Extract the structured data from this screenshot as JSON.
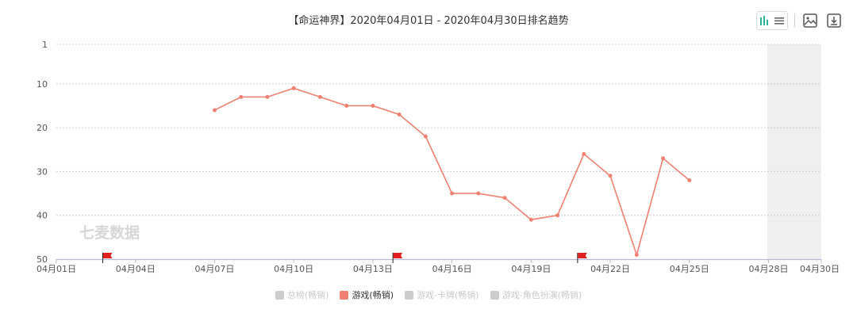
{
  "title": "【命运神界】2020年04月01日 - 2020年04月30日排名趋势",
  "watermark": "七麦数据",
  "legend": [
    {
      "label": "总榜(畅销)",
      "active": false,
      "color": "#cccccc"
    },
    {
      "label": "游戏(畅销)",
      "active": true,
      "color": "#f08070"
    },
    {
      "label": "游戏-卡牌(畅销)",
      "active": false,
      "color": "#cccccc"
    },
    {
      "label": "游戏-角色扮演(畅销)",
      "active": false,
      "color": "#cccccc"
    }
  ],
  "toolbar": {
    "view_toggle_icon": "bar-list-toggle-icon",
    "save_image_icon": "image-icon",
    "download_icon": "download-icon"
  },
  "colors": {
    "series": "#f08070",
    "axis": "#b8b8d8",
    "grid": "#cccccc",
    "shaded": "#efefef",
    "flag": "#e02020",
    "accent_toggle": "#2bb39a"
  },
  "chart_data": {
    "type": "line",
    "title": "【命运神界】2020年04月01日 - 2020年04月30日排名趋势",
    "xlabel": "",
    "ylabel": "",
    "x_tick_labels": [
      "04月01日",
      "04月04日",
      "04月07日",
      "04月10日",
      "04月13日",
      "04月16日",
      "04月19日",
      "04月22日",
      "04月25日",
      "04月28日",
      "04月30日"
    ],
    "x_tick_days": [
      1,
      4,
      7,
      10,
      13,
      16,
      19,
      22,
      25,
      28,
      30
    ],
    "y_ticks": [
      1,
      10,
      20,
      30,
      40,
      50
    ],
    "y_inverted": true,
    "ylim": [
      1,
      50
    ],
    "xlim": [
      "04月01日",
      "04月30日"
    ],
    "grid": true,
    "shaded_range": [
      "04月27日",
      "04月30日"
    ],
    "flags": [
      "04月03日",
      "04月14日",
      "04月21日"
    ],
    "series": [
      {
        "name": "游戏(畅销)",
        "x": [
          "04月07日",
          "04月08日",
          "04月09日",
          "04月10日",
          "04月11日",
          "04月12日",
          "04月13日",
          "04月14日",
          "04月15日",
          "04月16日",
          "04月17日",
          "04月18日",
          "04月19日",
          "04月20日",
          "04月21日",
          "04月22日",
          "04月23日",
          "04月24日",
          "04月25日"
        ],
        "x_days": [
          7,
          8,
          9,
          10,
          11,
          12,
          13,
          14,
          15,
          16,
          17,
          18,
          19,
          20,
          21,
          22,
          23,
          24,
          25
        ],
        "values": [
          16,
          13,
          13,
          11,
          13,
          15,
          15,
          17,
          22,
          35,
          35,
          36,
          41,
          40,
          26,
          31,
          49,
          27,
          32
        ]
      }
    ]
  }
}
